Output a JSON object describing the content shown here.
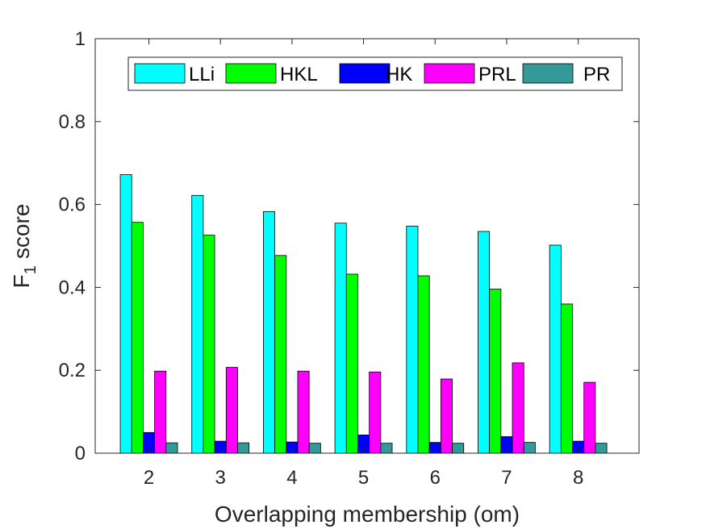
{
  "chart_data": {
    "type": "bar",
    "title": "",
    "xlabel": "Overlapping membership (om)",
    "ylabel": "F",
    "ylabel_subscript": "1",
    "ylabel_suffix": "score",
    "categories": [
      "2",
      "3",
      "4",
      "5",
      "6",
      "7",
      "8"
    ],
    "xlim": [
      1.25,
      8.85
    ],
    "ylim": [
      0,
      1
    ],
    "yticks": [
      0,
      0.2,
      0.4,
      0.6,
      0.8,
      1
    ],
    "ytick_labels": [
      "0",
      "0.2",
      "0.4",
      "0.6",
      "0.8",
      "1"
    ],
    "grid": false,
    "legend_position": "top, horizontal",
    "series": [
      {
        "name": "LLi",
        "color": "#00ffff",
        "values": [
          0.672,
          0.622,
          0.583,
          0.555,
          0.548,
          0.535,
          0.502
        ]
      },
      {
        "name": "HKL",
        "color": "#00ff00",
        "values": [
          0.557,
          0.526,
          0.477,
          0.432,
          0.428,
          0.396,
          0.36
        ]
      },
      {
        "name": "HK",
        "color": "#0000ff",
        "values": [
          0.05,
          0.029,
          0.027,
          0.044,
          0.026,
          0.04,
          0.029
        ]
      },
      {
        "name": "PRL",
        "color": "#ff00ff",
        "values": [
          0.198,
          0.207,
          0.198,
          0.196,
          0.179,
          0.218,
          0.171
        ]
      },
      {
        "name": "PR",
        "color": "#339999",
        "values": [
          0.025,
          0.025,
          0.024,
          0.024,
          0.024,
          0.026,
          0.024
        ]
      }
    ]
  }
}
